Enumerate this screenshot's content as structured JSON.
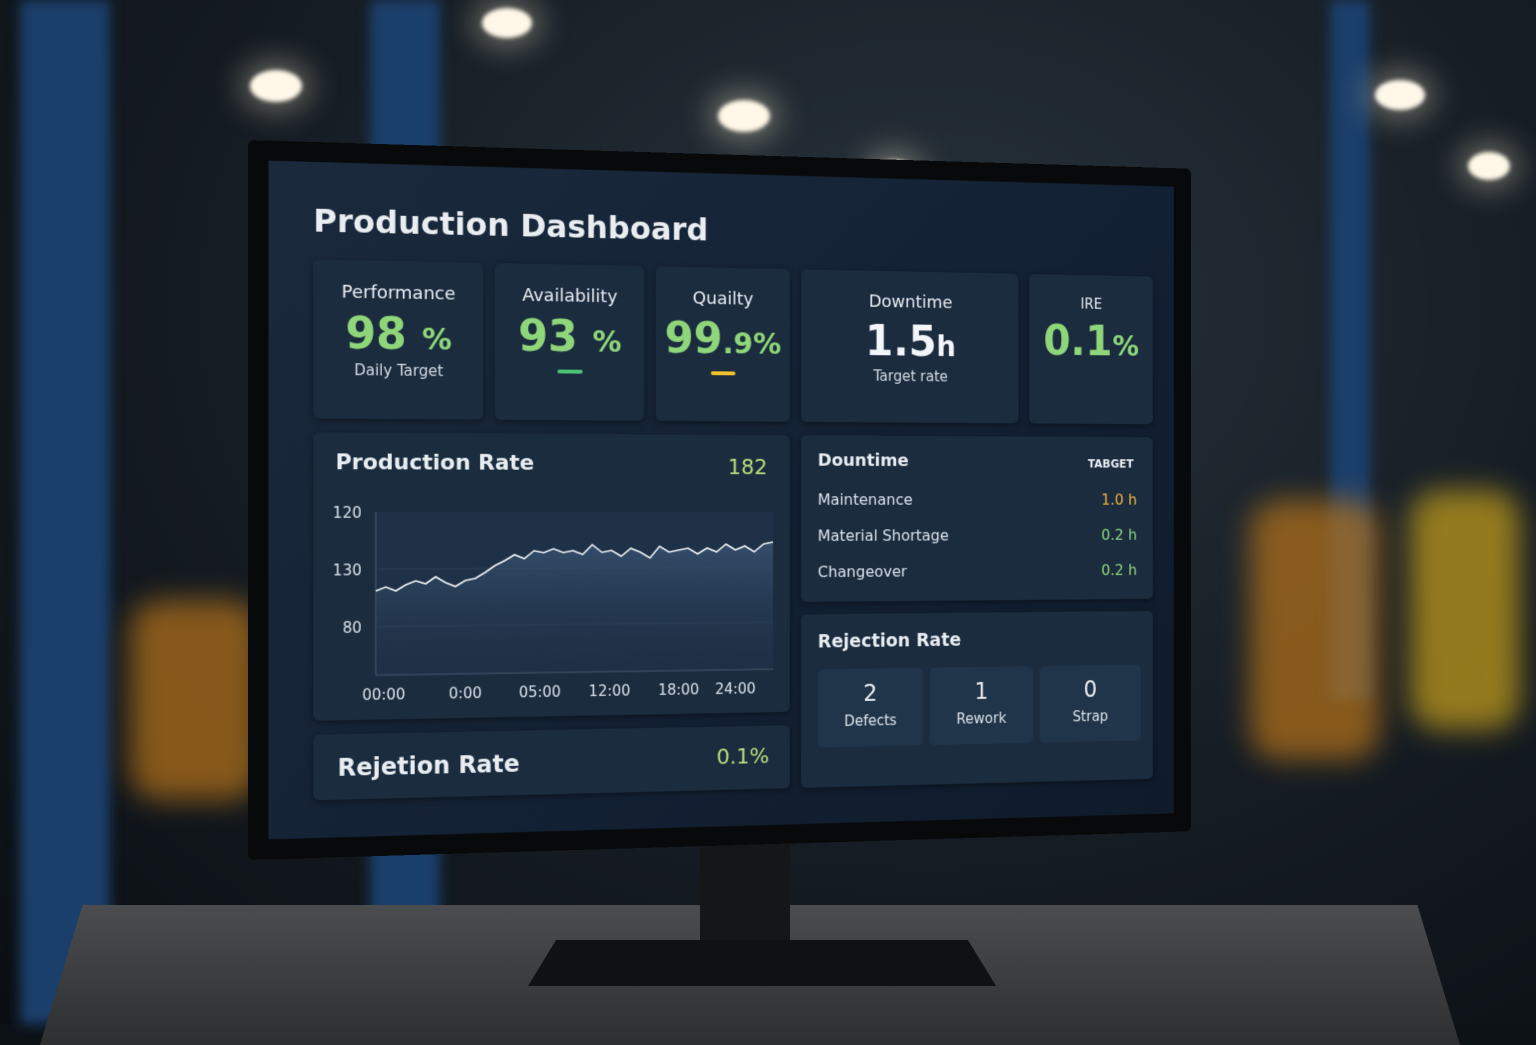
{
  "header": {
    "title": "Production Dashboard"
  },
  "kpis": [
    {
      "label": "Performance",
      "value": "98",
      "unit": "%",
      "note": "Daily Target"
    },
    {
      "label": "Availability",
      "value": "93",
      "unit": "%"
    },
    {
      "label": "Quailty",
      "value": "99",
      "unit": ".9%"
    },
    {
      "label": "Downtime",
      "value": "1.5",
      "unit": "h",
      "note": "Target rate"
    },
    {
      "label": "IRE",
      "value": "0.1",
      "unit": "%"
    }
  ],
  "production_rate": {
    "title": "Production Rate",
    "current": "182",
    "y_labels": [
      "120",
      "130",
      "80"
    ],
    "x_labels": [
      "00:00",
      "0:00",
      "05:00",
      "12:00",
      "18:00",
      "24:00"
    ]
  },
  "rejection_bar": {
    "title": "Rejetion Rate",
    "value": "0.1%"
  },
  "downtime": {
    "title": "Dountime",
    "badge": "TABGET",
    "items": [
      {
        "label": "Maintenance",
        "value": "1.0 h"
      },
      {
        "label": "Material Shortage",
        "value": "0.2 h"
      },
      {
        "label": "Changeover",
        "value": "0.2 h"
      }
    ]
  },
  "rejection": {
    "title": "Rejection Rate",
    "items": [
      {
        "count": "2",
        "label": "Defects"
      },
      {
        "count": "1",
        "label": "Rework"
      },
      {
        "count": "0",
        "label": "Strap"
      }
    ]
  }
}
